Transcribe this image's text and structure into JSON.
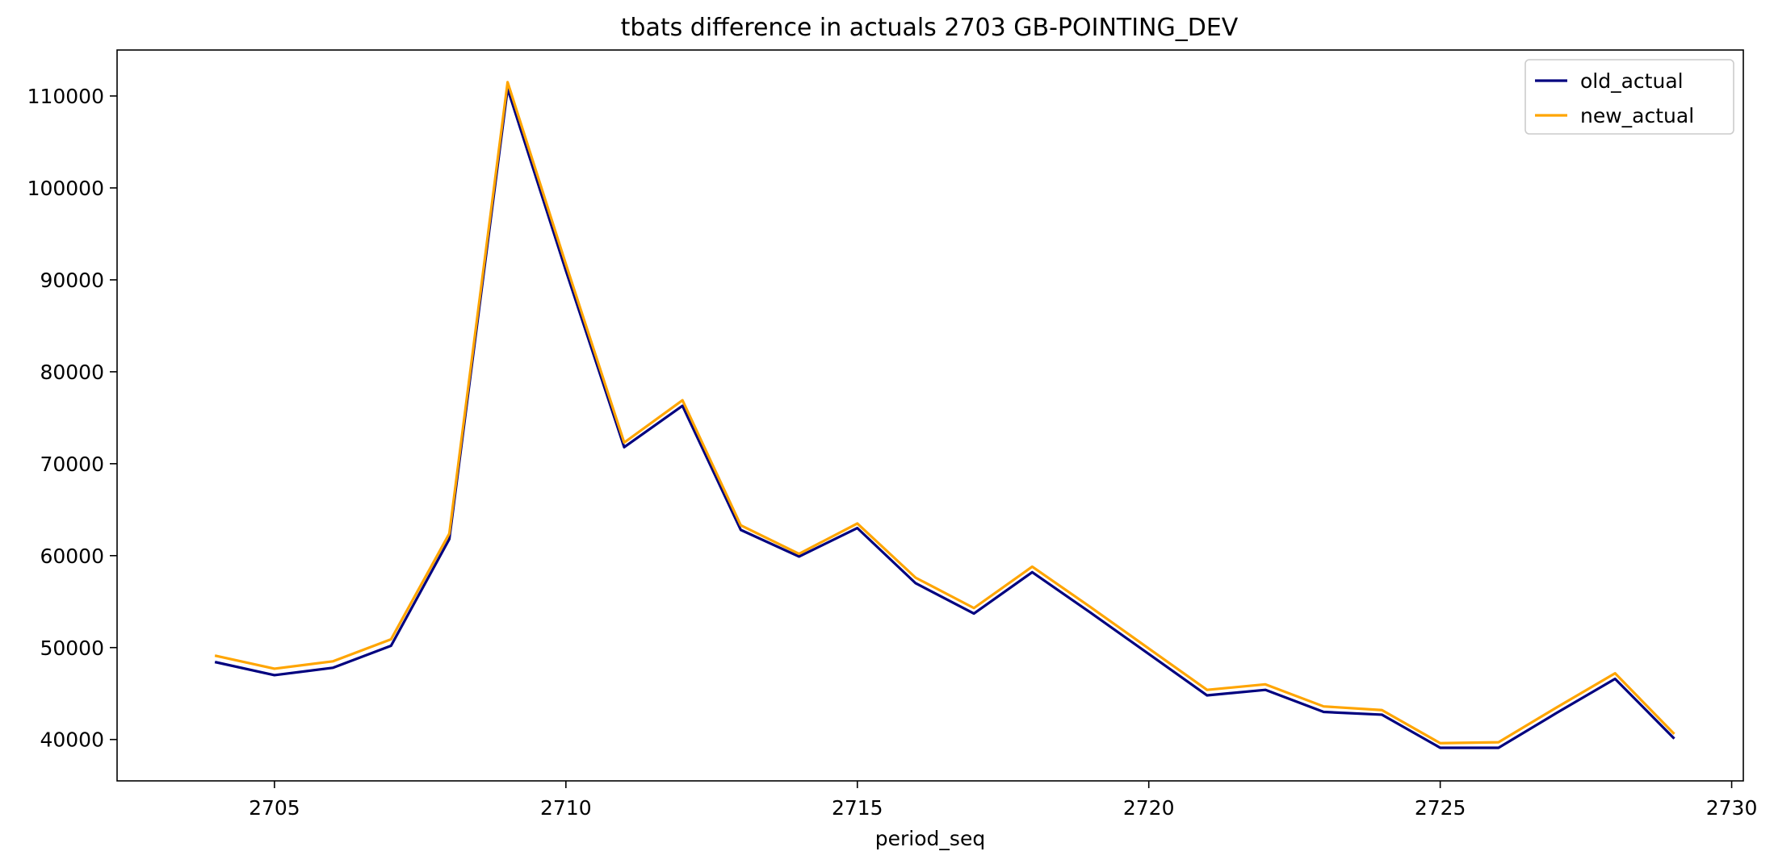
{
  "chart_data": {
    "type": "line",
    "title": "tbats difference in actuals 2703 GB-POINTING_DEV",
    "xlabel": "period_seq",
    "ylabel": "",
    "xlim": [
      2702.3,
      2730.2
    ],
    "ylim": [
      35500,
      115000
    ],
    "x_ticks": [
      2705,
      2710,
      2715,
      2720,
      2725,
      2730
    ],
    "y_ticks": [
      40000,
      50000,
      60000,
      70000,
      80000,
      90000,
      100000,
      110000
    ],
    "grid": false,
    "legend_position": "top-right",
    "x": [
      2704,
      2705,
      2706,
      2707,
      2708,
      2709,
      2710,
      2711,
      2712,
      2713,
      2714,
      2715,
      2716,
      2717,
      2718,
      2719,
      2720,
      2721,
      2722,
      2723,
      2724,
      2725,
      2726,
      2727,
      2728,
      2729
    ],
    "series": [
      {
        "name": "old_actual",
        "color": "#00007f",
        "values": [
          48400,
          47000,
          47800,
          50200,
          61800,
          110800,
          91000,
          71800,
          76300,
          62800,
          59900,
          63000,
          57000,
          53700,
          58200,
          53800,
          49300,
          44800,
          45400,
          43000,
          42700,
          39100,
          39100,
          42900,
          46600,
          40200
        ]
      },
      {
        "name": "new_actual",
        "color": "#ffa500",
        "values": [
          49100,
          47700,
          48500,
          50900,
          62400,
          111500,
          91700,
          72300,
          76900,
          63300,
          60200,
          63500,
          57600,
          54300,
          58800,
          54400,
          49900,
          45400,
          46000,
          43600,
          43200,
          39600,
          39700,
          43500,
          47200,
          40700
        ]
      }
    ]
  }
}
